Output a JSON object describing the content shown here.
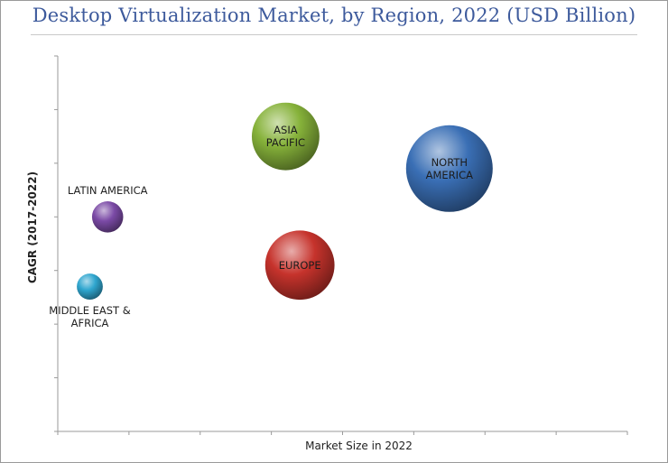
{
  "title": "Desktop Virtualization Market, by Region, 2022 (USD Billion)",
  "chart_data": {
    "type": "bubble",
    "title": "Desktop Virtualization Market, by Region, 2022 (USD Billion)",
    "xlabel": "Market Size in 2022",
    "ylabel": "CAGR (2017-2022)",
    "xlim": [
      0,
      8
    ],
    "ylim": [
      0,
      7
    ],
    "grid": false,
    "series": [
      {
        "label": "NORTH AMERICA",
        "label_lines": [
          "NORTH",
          "AMERICA"
        ],
        "x": 5.5,
        "y": 4.9,
        "size": 1.0,
        "color": "#3a6fb5",
        "label_pos": "center"
      },
      {
        "label": "ASIA PACIFIC",
        "label_lines": [
          "ASIA",
          "PACIFIC"
        ],
        "x": 3.2,
        "y": 5.5,
        "size": 0.78,
        "color": "#86b23a",
        "label_pos": "center"
      },
      {
        "label": "EUROPE",
        "label_lines": [
          "EUROPE"
        ],
        "x": 3.4,
        "y": 3.1,
        "size": 0.8,
        "color": "#c6332c",
        "label_pos": "center"
      },
      {
        "label": "LATIN AMERICA",
        "label_lines": [
          "LATIN AMERICA"
        ],
        "x": 0.7,
        "y": 4.0,
        "size": 0.36,
        "color": "#7b4aa6",
        "label_pos": "above"
      },
      {
        "label": "MIDDLE EAST & AFRICA",
        "label_lines": [
          "MIDDLE EAST &",
          "AFRICA"
        ],
        "x": 0.45,
        "y": 2.7,
        "size": 0.3,
        "color": "#2fa6cf",
        "label_pos": "below"
      }
    ]
  }
}
